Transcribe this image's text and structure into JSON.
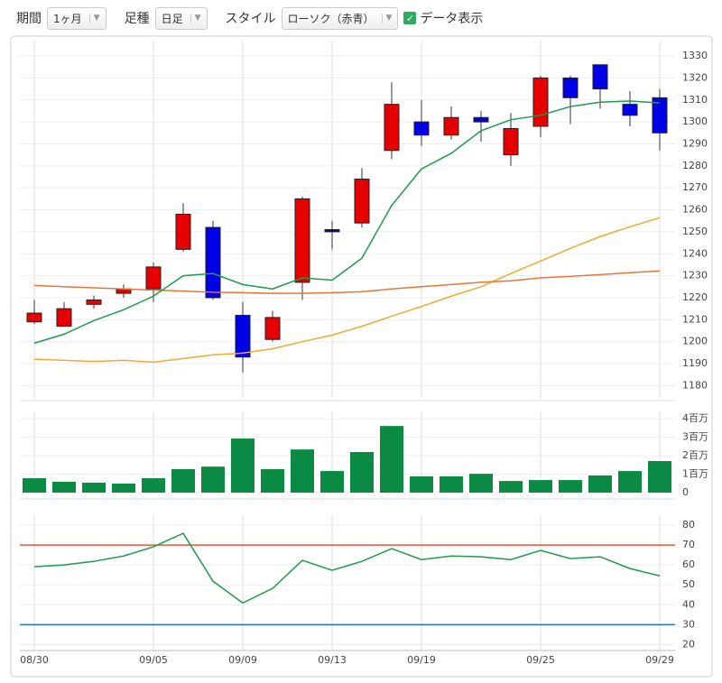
{
  "toolbar": {
    "period_label": "期間",
    "period_value": "1ヶ月",
    "bar_label": "足種",
    "bar_value": "日足",
    "style_label": "スタイル",
    "style_value": "ローソク（赤青）",
    "data_label": "データ表示"
  },
  "chart_data": [
    {
      "type": "candlestick",
      "up_color": "#e60000",
      "down_color": "#0000e6",
      "categories": [
        "08/30",
        null,
        null,
        null,
        "09/05",
        null,
        null,
        "09/09",
        null,
        null,
        "09/13",
        null,
        null,
        "09/19",
        null,
        null,
        null,
        "09/25",
        null,
        null,
        null,
        "09/29"
      ],
      "open": [
        1209,
        1207,
        1217,
        1222,
        1224,
        1242,
        1252,
        1212,
        1201,
        1227,
        1251,
        1254,
        1287,
        1300,
        1294,
        1302,
        1285,
        1298,
        1320,
        1326,
        1308,
        1311
      ],
      "high": [
        1219,
        1218,
        1221,
        1226,
        1236,
        1263,
        1255,
        1218,
        1214,
        1266,
        1255,
        1279,
        1318,
        1310,
        1307,
        1305,
        1304,
        1321,
        1321,
        1326,
        1314,
        1315
      ],
      "low": [
        1208,
        1207,
        1215,
        1220,
        1218,
        1241,
        1219,
        1186,
        1200,
        1219,
        1242,
        1252,
        1283,
        1289,
        1292,
        1291,
        1280,
        1293,
        1299,
        1306,
        1298,
        1287
      ],
      "close": [
        1213,
        1215,
        1219,
        1224,
        1234,
        1258,
        1220,
        1193,
        1211,
        1265,
        1250,
        1274,
        1308,
        1294,
        1302,
        1300,
        1297,
        1320,
        1311,
        1315,
        1303,
        1295
      ],
      "series": [
        {
          "color": "#f0a830",
          "values": [
            1192,
            1191.5,
            1191,
            1191.5,
            1190.7,
            1192.3,
            1194,
            1194.8,
            1196.8,
            1200,
            1203,
            1207,
            1211.6,
            1216,
            1220.7,
            1225,
            1231,
            1236.7,
            1242.5,
            1247.8,
            1252.3,
            1256.4
          ]
        },
        {
          "color": "#e8743b",
          "values": [
            1225.6,
            1225,
            1224.5,
            1224,
            1223.5,
            1223,
            1222.5,
            1222.3,
            1222,
            1222,
            1222.3,
            1222.7,
            1224,
            1225,
            1226,
            1227,
            1227.7,
            1229,
            1229.7,
            1230.5,
            1231.4,
            1232.2
          ]
        },
        {
          "color": "#1e9a4a",
          "values": [
            1199.3,
            1203.4,
            1209.6,
            1214.5,
            1220.7,
            1230,
            1231,
            1226,
            1224,
            1229,
            1228,
            1238,
            1262,
            1278.6,
            1285.7,
            1296,
            1301,
            1303,
            1307,
            1309,
            1309.5,
            1308.6
          ]
        }
      ],
      "ylim": [
        1174,
        1337
      ],
      "yticks": [
        1180,
        1190,
        1200,
        1210,
        1220,
        1230,
        1240,
        1250,
        1260,
        1270,
        1280,
        1290,
        1300,
        1310,
        1320,
        1330
      ]
    },
    {
      "type": "bar",
      "color": "#0b8a43",
      "values": [
        0.78,
        0.59,
        0.54,
        0.49,
        0.78,
        1.27,
        1.41,
        2.93,
        1.27,
        2.34,
        1.17,
        2.2,
        3.61,
        0.88,
        0.88,
        1.02,
        0.63,
        0.68,
        0.68,
        0.93,
        1.17,
        1.71
      ],
      "ylim": [
        0,
        4.4
      ],
      "yticks": [
        0,
        {
          "value": 1,
          "label": "1百万"
        },
        {
          "value": 2,
          "label": "2百万"
        },
        {
          "value": 3,
          "label": "3百万"
        },
        {
          "value": 4,
          "label": "4百万"
        }
      ]
    },
    {
      "type": "line",
      "color": "#1e9a4a",
      "values": [
        59.1,
        60,
        61.8,
        64.5,
        69.1,
        75.9,
        51.8,
        40.9,
        48.2,
        62.3,
        57.3,
        61.8,
        68.2,
        62.7,
        64.5,
        64.1,
        62.7,
        67.3,
        63.2,
        64.1,
        58.2,
        54.5
      ],
      "lines": [
        {
          "value": 70,
          "color": "#e05a3a"
        },
        {
          "value": 30,
          "color": "#2a6db5"
        }
      ],
      "ylim": [
        17,
        85
      ],
      "yticks": [
        20,
        30,
        40,
        50,
        60,
        70,
        80
      ]
    }
  ]
}
